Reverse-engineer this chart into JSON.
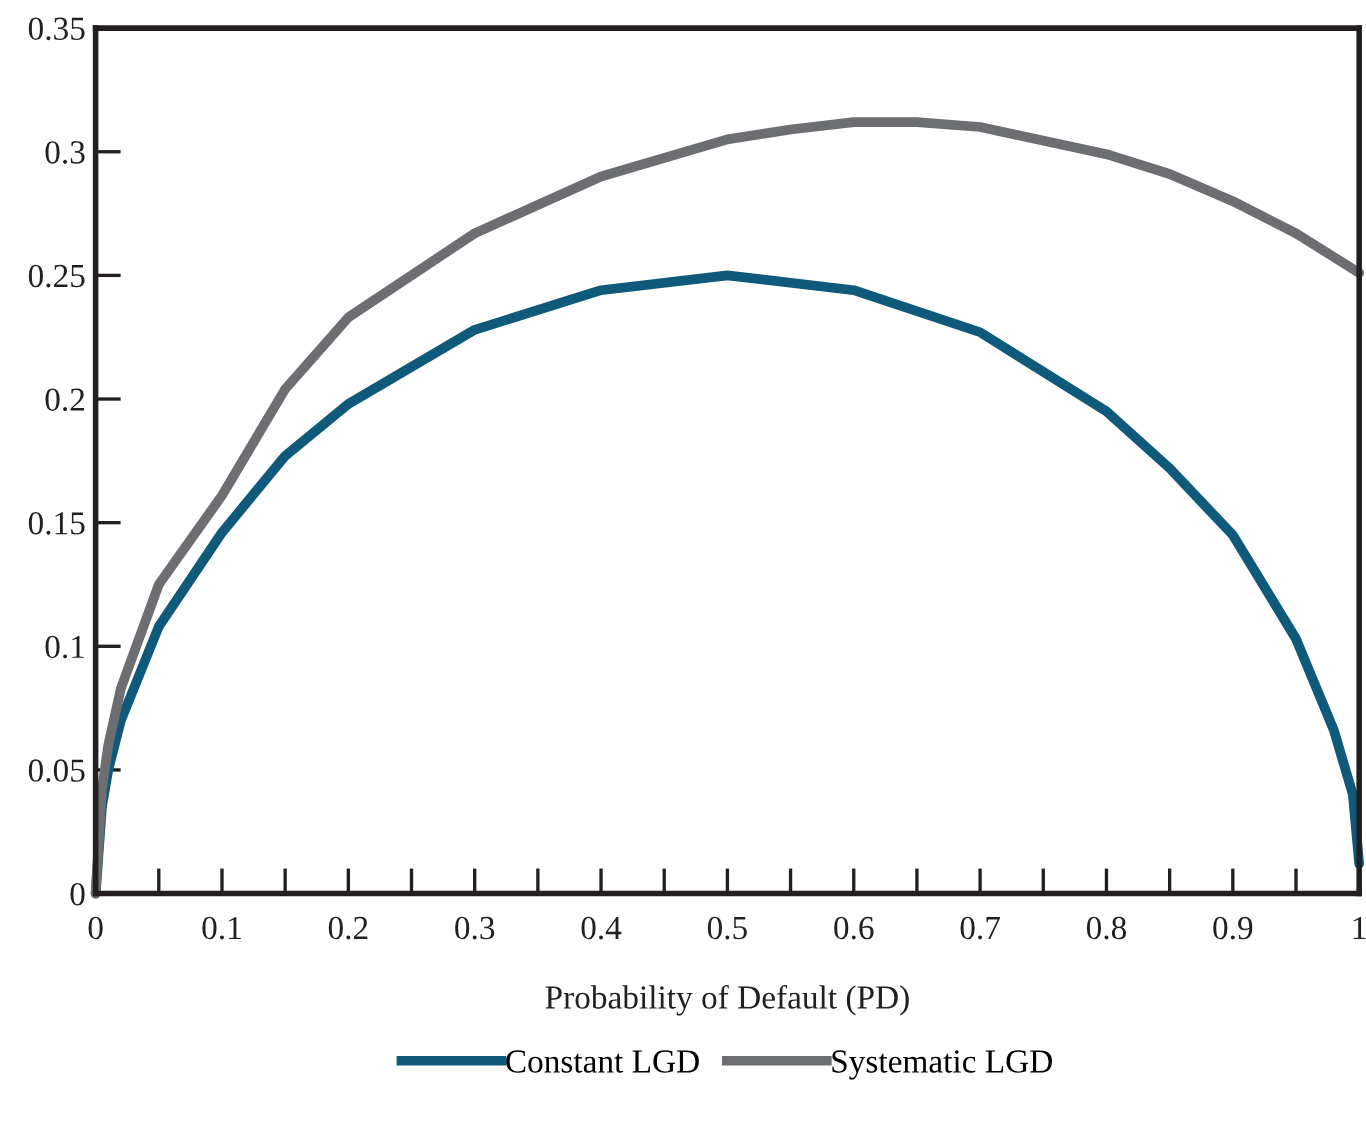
{
  "chart_data": {
    "type": "line",
    "xlabel": "Probability of Default (PD)",
    "series": [
      {
        "name": "Constant LGD",
        "color": "#0f5a7a",
        "x": [
          0,
          0.005,
          0.01,
          0.02,
          0.05,
          0.1,
          0.15,
          0.2,
          0.3,
          0.4,
          0.5,
          0.6,
          0.7,
          0.8,
          0.85,
          0.9,
          0.95,
          0.98,
          0.995,
          1
        ],
        "values": [
          0,
          0.035,
          0.05,
          0.07,
          0.108,
          0.146,
          0.177,
          0.198,
          0.228,
          0.244,
          0.25,
          0.244,
          0.227,
          0.195,
          0.172,
          0.145,
          0.103,
          0.066,
          0.04,
          0.012
        ]
      },
      {
        "name": "Systematic LGD",
        "color": "#6d6e71",
        "x": [
          0,
          0.005,
          0.01,
          0.02,
          0.05,
          0.1,
          0.15,
          0.2,
          0.3,
          0.4,
          0.5,
          0.55,
          0.6,
          0.65,
          0.7,
          0.8,
          0.85,
          0.9,
          0.95,
          1
        ],
        "values": [
          0,
          0.042,
          0.06,
          0.083,
          0.125,
          0.161,
          0.204,
          0.233,
          0.267,
          0.29,
          0.305,
          0.309,
          0.312,
          0.312,
          0.31,
          0.299,
          0.291,
          0.28,
          0.267,
          0.251
        ]
      }
    ],
    "xlim": [
      0,
      1
    ],
    "ylim": [
      0,
      0.35
    ],
    "xticks": [
      0,
      {
        "value": 0.05,
        "label": null
      },
      0.1,
      {
        "value": 0.15,
        "label": null
      },
      0.2,
      {
        "value": 0.25,
        "label": null
      },
      0.3,
      {
        "value": 0.35,
        "label": null
      },
      0.4,
      {
        "value": 0.45,
        "label": null
      },
      0.5,
      {
        "value": 0.55,
        "label": null
      },
      0.6,
      {
        "value": 0.65,
        "label": null
      },
      0.7,
      {
        "value": 0.75,
        "label": null
      },
      0.8,
      {
        "value": 0.85,
        "label": null
      },
      0.9,
      {
        "value": 0.95,
        "label": null
      },
      1
    ],
    "yticks": [
      0,
      0.05,
      0.1,
      0.15,
      0.2,
      0.25,
      0.3,
      0.35
    ],
    "grid": false,
    "legend": "bottom",
    "marker": "none",
    "line_style": "solid"
  }
}
